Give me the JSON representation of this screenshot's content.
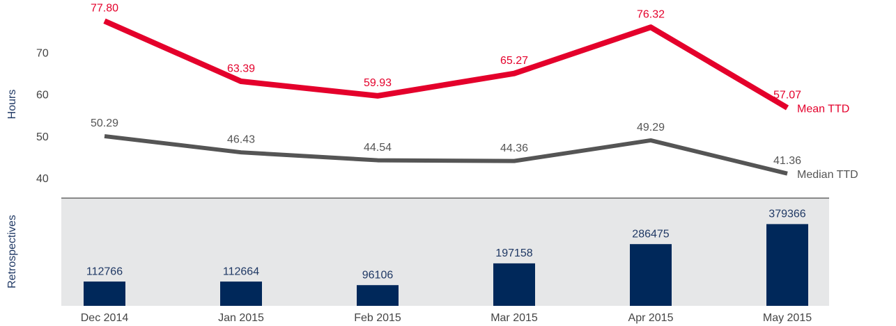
{
  "chart_data": {
    "type": "line",
    "ylabel": "Hours",
    "categories": [
      "Dec 2014",
      "Jan 2015",
      "Feb 2015",
      "Mar 2015",
      "Apr 2015",
      "May 2015"
    ],
    "ylim": [
      36,
      80
    ],
    "yticks": [
      40,
      50,
      60,
      70
    ],
    "y2lim": [
      0,
      500000
    ],
    "series": [
      {
        "name": "Mean TTD",
        "color": "#e4002b",
        "values": [
          77.8,
          63.39,
          59.93,
          65.27,
          76.32,
          57.07
        ],
        "value_labels": [
          "77.80",
          "63.39",
          "59.93",
          "65.27",
          "76.32",
          "57.07"
        ]
      },
      {
        "name": "Median TTD",
        "color": "#555555",
        "values": [
          50.29,
          46.43,
          44.54,
          44.36,
          49.29,
          41.36
        ]
      },
      {
        "name": "Retrospectives",
        "type": "bar",
        "axis": "y2",
        "color": "#00285a",
        "values": [
          112766,
          112664,
          96106,
          197158,
          286475,
          379366
        ]
      }
    ]
  }
}
